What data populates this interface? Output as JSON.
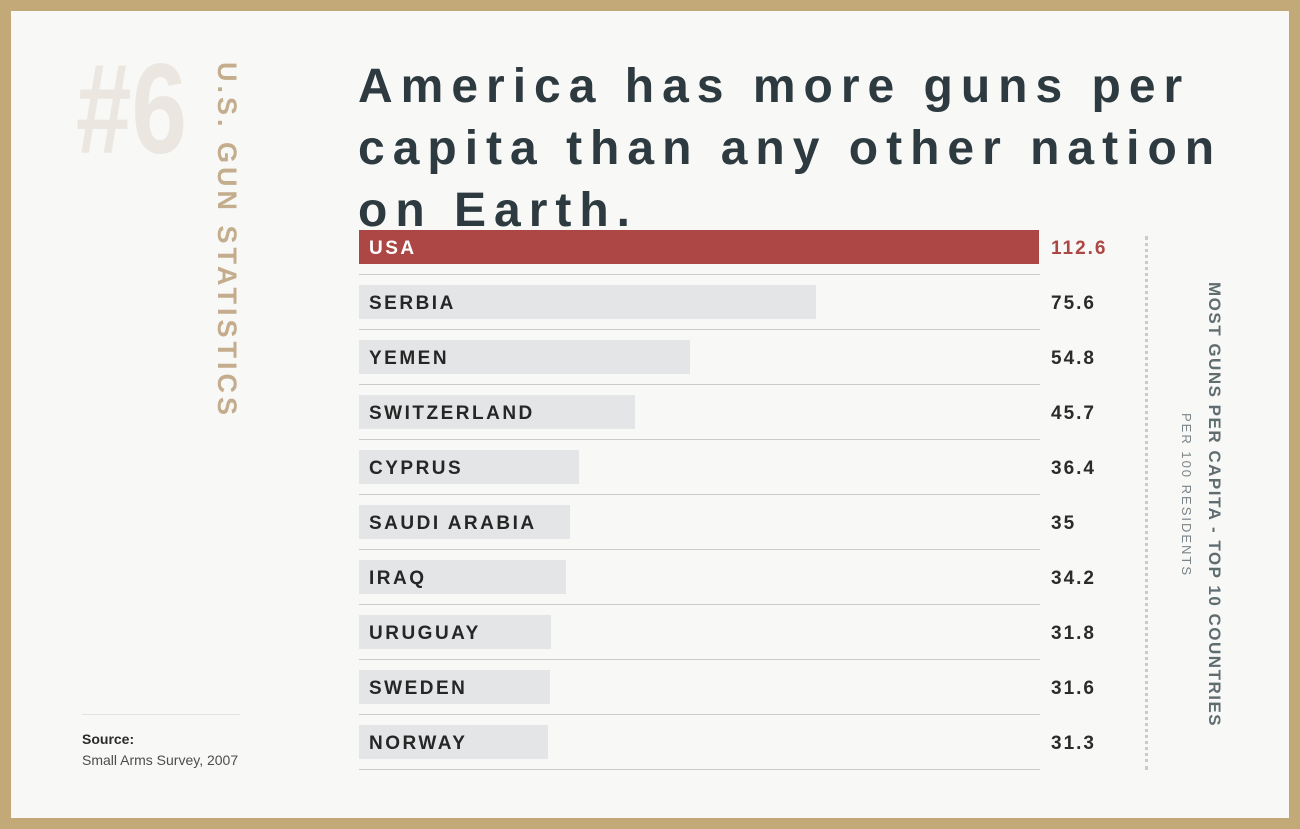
{
  "header": {
    "rank": "#6",
    "section_label": "U.S. GUN STATISTICS",
    "headline": "America has more guns per capita than any other nation on Earth."
  },
  "source": {
    "title": "Source:",
    "text": "Small Arms Survey, 2007"
  },
  "side": {
    "title": "MOST GUNS PER CAPITA - TOP 10 COUNTRIES",
    "subtitle": "PER 100 RESIDENTS"
  },
  "colors": {
    "frame": "#c3a878",
    "highlight_bar": "#ad4745",
    "bar": "#e4e5e6",
    "highlight_value": "#ad4745",
    "value": "#2b2b2b",
    "headline": "#2d3a3f"
  },
  "chart_data": {
    "type": "bar",
    "orientation": "horizontal",
    "title": "MOST GUNS PER CAPITA - TOP 10 COUNTRIES",
    "subtitle": "PER 100 RESIDENTS",
    "categories": [
      "USA",
      "SERBIA",
      "YEMEN",
      "SWITZERLAND",
      "CYPRUS",
      "SAUDI ARABIA",
      "IRAQ",
      "URUGUAY",
      "SWEDEN",
      "NORWAY"
    ],
    "values": [
      112.6,
      75.6,
      54.8,
      45.7,
      36.4,
      35,
      34.2,
      31.8,
      31.6,
      31.3
    ],
    "value_labels": [
      "112.6",
      "75.6",
      "54.8",
      "45.7",
      "36.4",
      "35",
      "34.2",
      "31.8",
      "31.6",
      "31.3"
    ],
    "highlight_index": 0,
    "xlim": [
      0,
      112.6
    ],
    "grid": false,
    "legend": "none"
  }
}
